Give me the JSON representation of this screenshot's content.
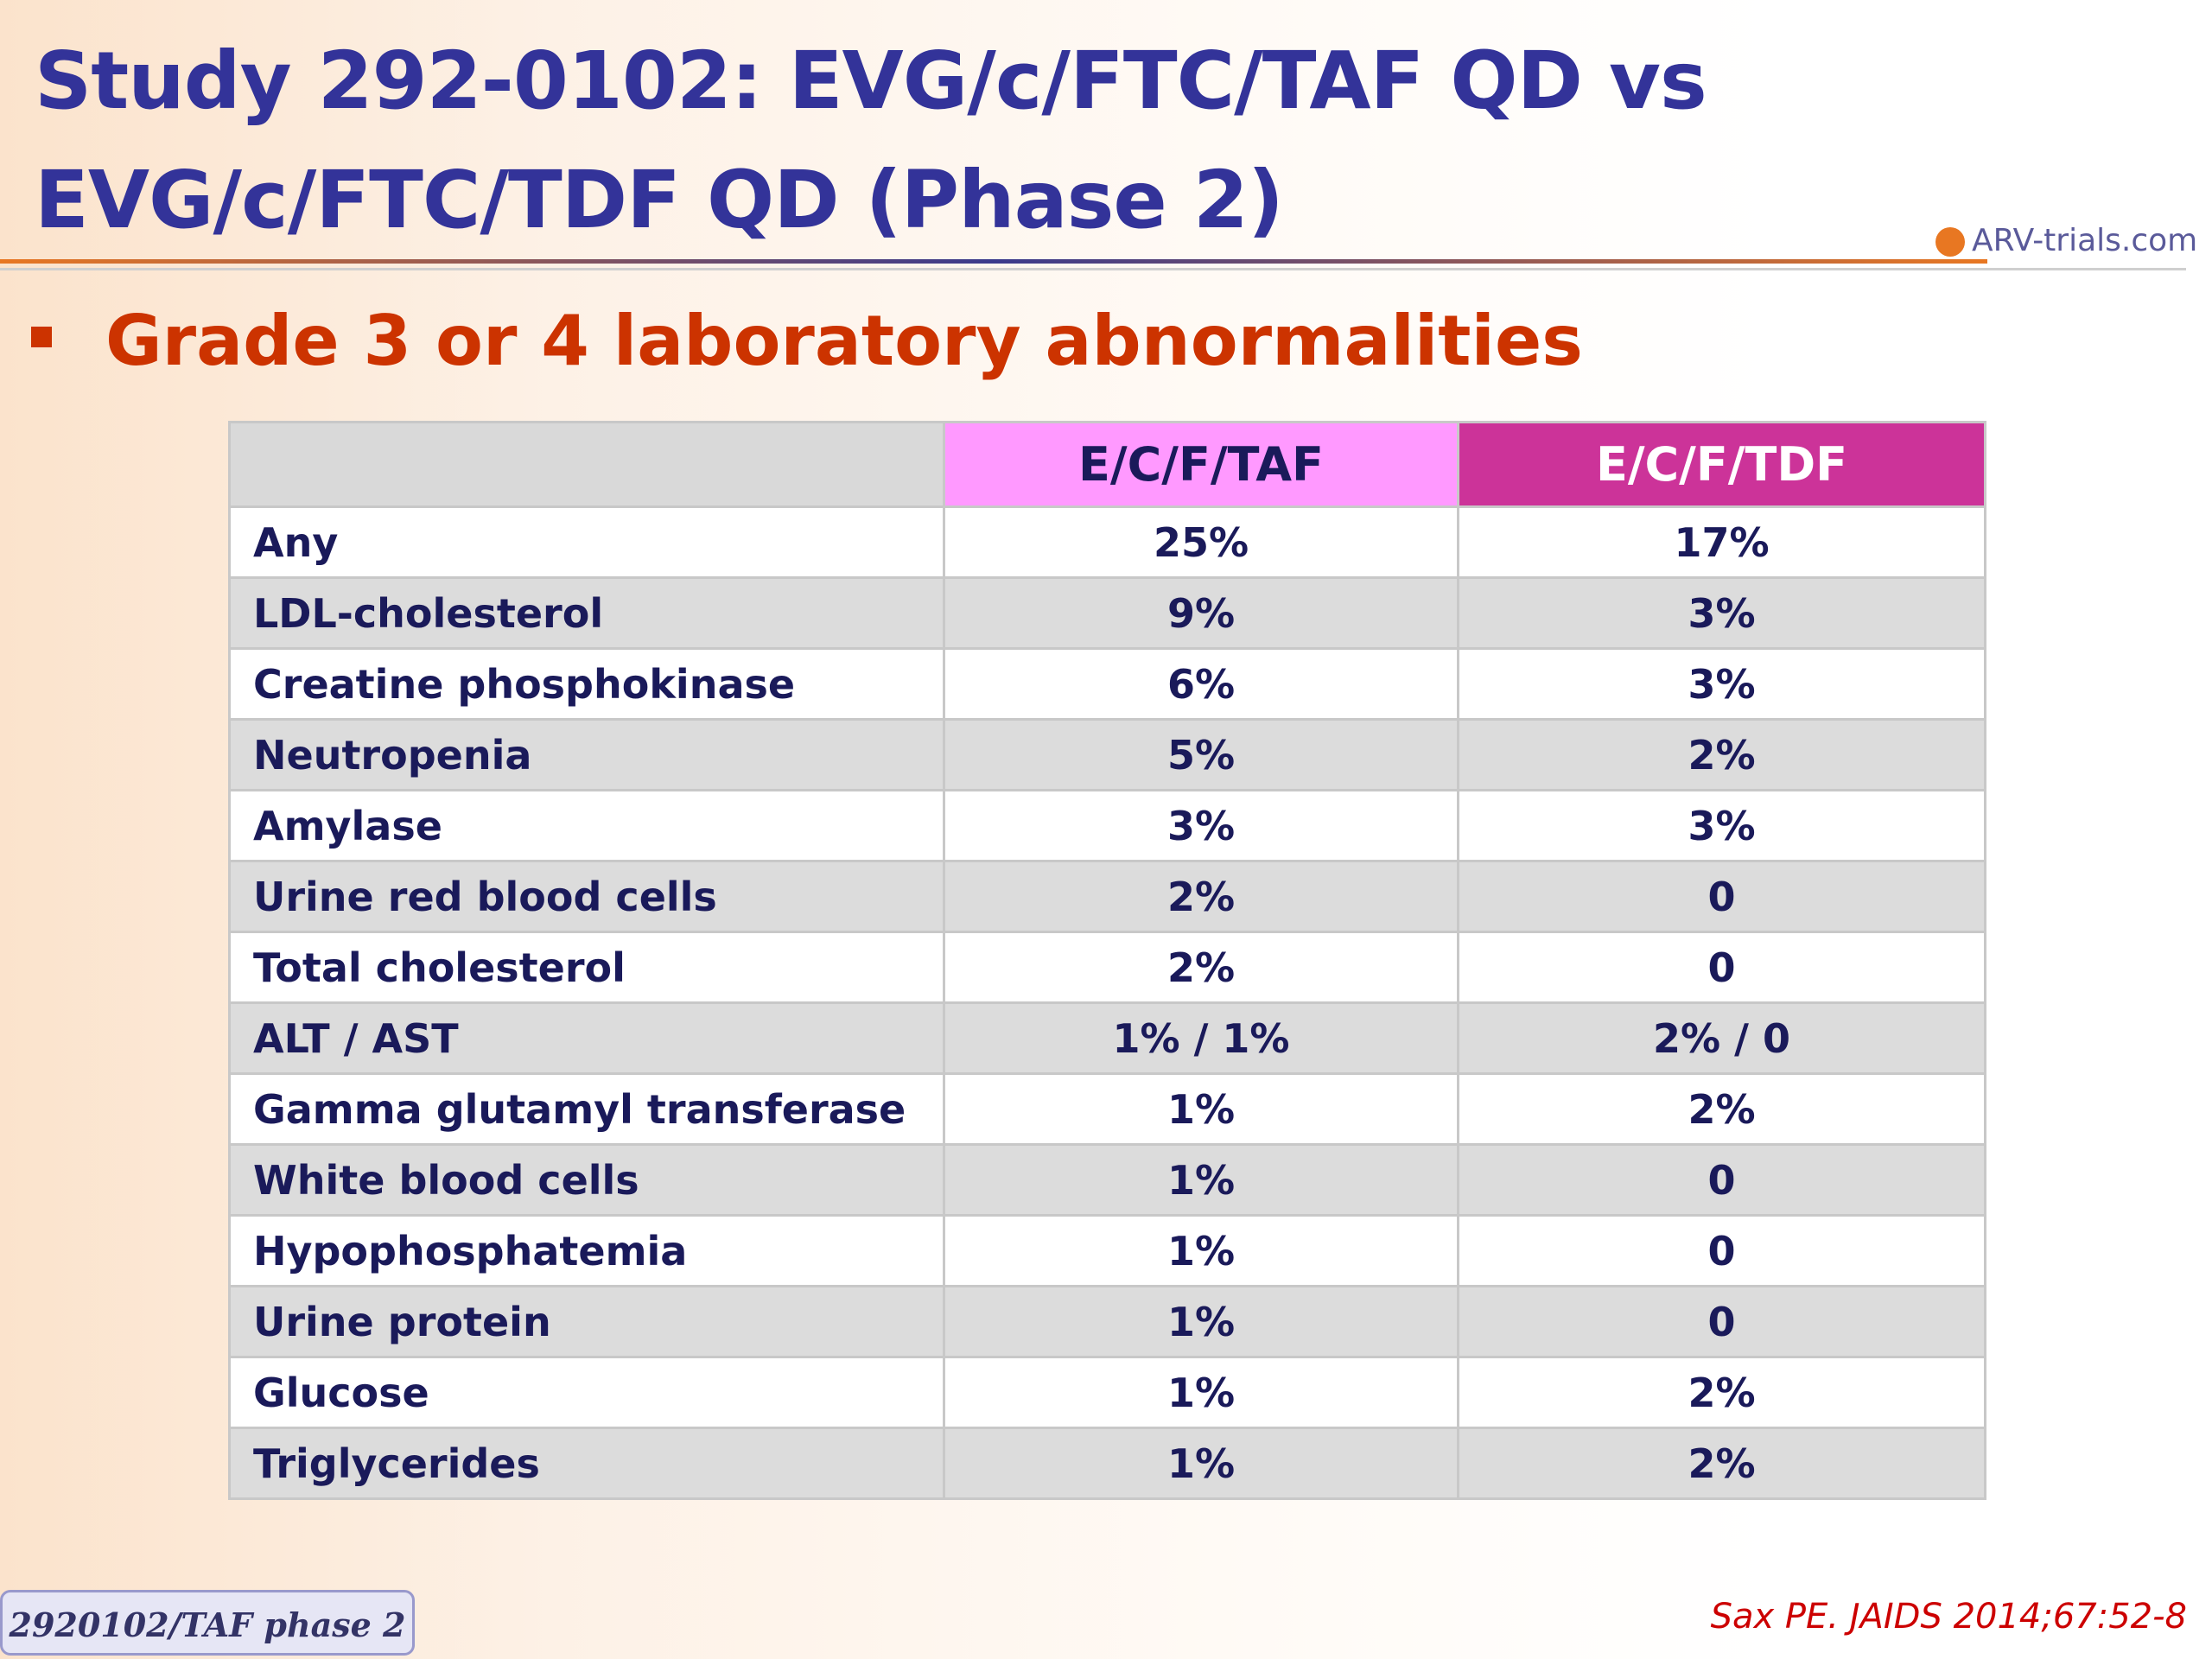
{
  "header": {
    "title_line1": "Study 292-0102: EVG/c/FTC/TAF QD vs",
    "title_line2": "EVG/c/FTC/TDF QD (Phase 2)",
    "logo": "ARV-trials.com"
  },
  "bullet": "Grade 3 or 4 laboratory abnormalities",
  "table": {
    "columns": [
      "E/C/F/TAF",
      "E/C/F/TDF"
    ],
    "rows": [
      [
        "Any",
        "25%",
        "17%"
      ],
      [
        "LDL-cholesterol",
        "9%",
        "3%"
      ],
      [
        "Creatine phosphokinase",
        "6%",
        "3%"
      ],
      [
        "Neutropenia",
        "5%",
        "2%"
      ],
      [
        "Amylase",
        "3%",
        "3%"
      ],
      [
        "Urine red blood cells",
        "2%",
        "0"
      ],
      [
        "Total cholesterol",
        "2%",
        "0"
      ],
      [
        "ALT / AST",
        "1% / 1%",
        "2% / 0"
      ],
      [
        "Gamma glutamyl transferase",
        "1%",
        "2%"
      ],
      [
        "White blood cells",
        "1%",
        "0"
      ],
      [
        "Hypophosphatemia",
        "1%",
        "0"
      ],
      [
        "Urine protein",
        "1%",
        "0"
      ],
      [
        "Glucose",
        "1%",
        "2%"
      ],
      [
        "Triglycerides",
        "1%",
        "2%"
      ]
    ]
  },
  "footer": {
    "label": "2920102/TAF phase 2",
    "citation": "Sax PE. JAIDS 2014;67:52-8"
  }
}
